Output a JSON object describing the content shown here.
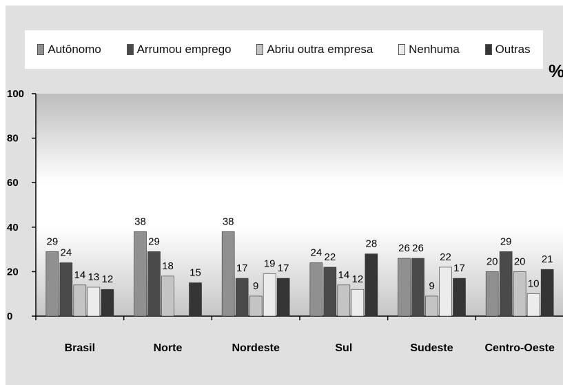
{
  "chart_data": {
    "type": "bar",
    "unit_label": "%",
    "categories": [
      "Brasil",
      "Norte",
      "Nordeste",
      "Sul",
      "Sudeste",
      "Centro-Oeste"
    ],
    "series": [
      {
        "name": "Autônomo",
        "values": [
          29,
          38,
          38,
          24,
          26,
          20
        ],
        "labels": [
          "29",
          "38",
          "38",
          "24",
          "26",
          "20"
        ],
        "color": "#909090"
      },
      {
        "name": "Arrumou emprego",
        "values": [
          24,
          29,
          17,
          22,
          26,
          29
        ],
        "labels": [
          "24",
          "29",
          "17",
          "22",
          "26",
          "29"
        ],
        "color": "#4a4a4a"
      },
      {
        "name": "Abriu outra empresa",
        "values": [
          14,
          18,
          9,
          14,
          9,
          20
        ],
        "labels": [
          "14",
          "18",
          "9",
          "14",
          "9",
          "20"
        ],
        "color": "#c4c4c4"
      },
      {
        "name": "Nenhuma",
        "values": [
          13,
          null,
          19,
          12,
          22,
          10
        ],
        "labels": [
          "13",
          "",
          "19",
          "12",
          "22",
          "10"
        ],
        "color": "#ececec"
      },
      {
        "name": "Outras",
        "values": [
          12,
          15,
          17,
          28,
          17,
          21
        ],
        "labels": [
          "12",
          "15",
          "17",
          "28",
          "17",
          "21"
        ],
        "color": "#353535"
      }
    ],
    "yticks": [
      "0",
      "20",
      "40",
      "60",
      "80",
      "100"
    ],
    "ylim": [
      0,
      100
    ],
    "legend_position": "top",
    "grid": false
  }
}
